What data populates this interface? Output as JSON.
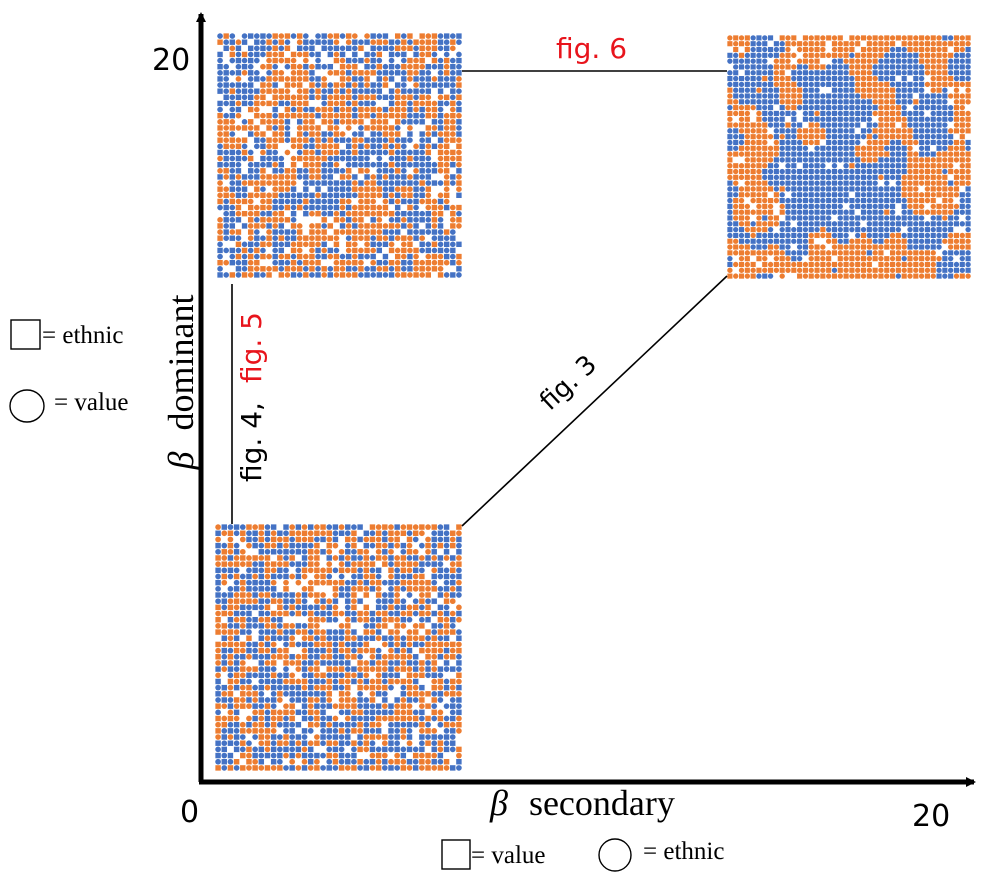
{
  "axes": {
    "x_label_symbol": "β",
    "x_label_text": "secondary",
    "y_label_symbol": "β",
    "y_label_text": "dominant",
    "x_min_label": "0",
    "x_max_label": "20",
    "y_max_label": "20"
  },
  "legend_y_axis": {
    "square_text": "= ethnic",
    "circle_text": "= value"
  },
  "legend_x_axis": {
    "square_text": "= value",
    "circle_text": "= ethnic"
  },
  "annotations": {
    "fig3": "fig. 3",
    "fig4": "fig. 4,",
    "fig5": "fig. 5",
    "fig6": "fig. 6"
  },
  "colors": {
    "orange": "#ed7d31",
    "blue": "#4472c4",
    "red_label": "#e8141c",
    "axis": "#000000"
  },
  "panels": [
    {
      "id": "low-low",
      "pattern": "random mix"
    },
    {
      "id": "high-dominant-low-secondary",
      "pattern": "large diffuse clusters"
    },
    {
      "id": "high-high",
      "pattern": "sharp segregated domains"
    }
  ]
}
